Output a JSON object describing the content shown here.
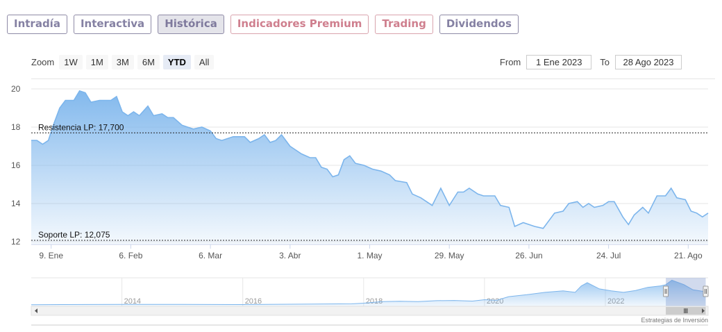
{
  "tabs": [
    {
      "label": "Intradía",
      "style": "normal"
    },
    {
      "label": "Interactiva",
      "style": "normal"
    },
    {
      "label": "Histórica",
      "style": "active"
    },
    {
      "label": "Indicadores Premium",
      "style": "pink"
    },
    {
      "label": "Trading",
      "style": "pink"
    },
    {
      "label": "Dividendos",
      "style": "normal"
    }
  ],
  "zoom": {
    "label": "Zoom",
    "buttons": [
      "1W",
      "1M",
      "3M",
      "6M",
      "YTD",
      "All"
    ],
    "selected": "YTD"
  },
  "range": {
    "from_label": "From",
    "from_value": "1 Ene 2023",
    "to_label": "To",
    "to_value": "28 Ago 2023"
  },
  "credit": "Estrategias de Inversión",
  "colors": {
    "line": "#7cb5ec",
    "area_top": "#7cb5ec",
    "tab_text": "#8581a3",
    "tab_pink": "#cf7f8e"
  },
  "chart_data": {
    "type": "area",
    "x_unit": "2023 dates",
    "x_range": [
      "2023-01-02",
      "2023-08-28"
    ],
    "ylim": [
      12,
      20
    ],
    "yticks": [
      12,
      14,
      16,
      18,
      20
    ],
    "grid": true,
    "xticks": [
      {
        "date": "2023-01-09",
        "label": "9. Ene"
      },
      {
        "date": "2023-02-06",
        "label": "6. Feb"
      },
      {
        "date": "2023-03-06",
        "label": "6. Mar"
      },
      {
        "date": "2023-04-03",
        "label": "3. Abr"
      },
      {
        "date": "2023-05-01",
        "label": "1. May"
      },
      {
        "date": "2023-05-29",
        "label": "29. May"
      },
      {
        "date": "2023-06-26",
        "label": "26. Jun"
      },
      {
        "date": "2023-07-24",
        "label": "24. Jul"
      },
      {
        "date": "2023-08-21",
        "label": "21. Ago"
      }
    ],
    "reference_lines": [
      {
        "label": "Resistencia LP: 17,700",
        "value": 17.7
      },
      {
        "label": "Soporte LP: 12,075",
        "value": 12.075
      }
    ],
    "points": [
      [
        "2023-01-02",
        17.3
      ],
      [
        "2023-01-04",
        17.3
      ],
      [
        "2023-01-06",
        17.1
      ],
      [
        "2023-01-08",
        17.3
      ],
      [
        "2023-01-10",
        18.2
      ],
      [
        "2023-01-12",
        19.0
      ],
      [
        "2023-01-14",
        19.4
      ],
      [
        "2023-01-17",
        19.4
      ],
      [
        "2023-01-19",
        19.9
      ],
      [
        "2023-01-21",
        19.8
      ],
      [
        "2023-01-23",
        19.3
      ],
      [
        "2023-01-26",
        19.4
      ],
      [
        "2023-01-30",
        19.4
      ],
      [
        "2023-02-01",
        19.6
      ],
      [
        "2023-02-03",
        18.8
      ],
      [
        "2023-02-05",
        18.6
      ],
      [
        "2023-02-07",
        18.8
      ],
      [
        "2023-02-09",
        18.6
      ],
      [
        "2023-02-12",
        19.1
      ],
      [
        "2023-02-14",
        18.6
      ],
      [
        "2023-02-17",
        18.7
      ],
      [
        "2023-02-19",
        18.5
      ],
      [
        "2023-02-21",
        18.5
      ],
      [
        "2023-02-24",
        18.1
      ],
      [
        "2023-02-28",
        17.9
      ],
      [
        "2023-03-03",
        18.0
      ],
      [
        "2023-03-06",
        17.8
      ],
      [
        "2023-03-08",
        17.4
      ],
      [
        "2023-03-10",
        17.3
      ],
      [
        "2023-03-14",
        17.5
      ],
      [
        "2023-03-18",
        17.5
      ],
      [
        "2023-03-20",
        17.2
      ],
      [
        "2023-03-23",
        17.4
      ],
      [
        "2023-03-25",
        17.6
      ],
      [
        "2023-03-27",
        17.2
      ],
      [
        "2023-03-29",
        17.3
      ],
      [
        "2023-03-31",
        17.6
      ],
      [
        "2023-04-03",
        17.0
      ],
      [
        "2023-04-05",
        16.8
      ],
      [
        "2023-04-07",
        16.6
      ],
      [
        "2023-04-10",
        16.4
      ],
      [
        "2023-04-12",
        16.4
      ],
      [
        "2023-04-14",
        15.9
      ],
      [
        "2023-04-16",
        15.8
      ],
      [
        "2023-04-18",
        15.4
      ],
      [
        "2023-04-20",
        15.5
      ],
      [
        "2023-04-22",
        16.3
      ],
      [
        "2023-04-24",
        16.5
      ],
      [
        "2023-04-26",
        16.1
      ],
      [
        "2023-04-29",
        16.0
      ],
      [
        "2023-05-02",
        15.8
      ],
      [
        "2023-05-05",
        15.7
      ],
      [
        "2023-05-08",
        15.5
      ],
      [
        "2023-05-10",
        15.2
      ],
      [
        "2023-05-14",
        15.1
      ],
      [
        "2023-05-16",
        14.5
      ],
      [
        "2023-05-19",
        14.3
      ],
      [
        "2023-05-23",
        13.9
      ],
      [
        "2023-05-26",
        14.8
      ],
      [
        "2023-05-29",
        13.9
      ],
      [
        "2023-06-01",
        14.6
      ],
      [
        "2023-06-03",
        14.6
      ],
      [
        "2023-06-05",
        14.8
      ],
      [
        "2023-06-08",
        14.5
      ],
      [
        "2023-06-10",
        14.4
      ],
      [
        "2023-06-14",
        14.4
      ],
      [
        "2023-06-16",
        13.9
      ],
      [
        "2023-06-19",
        13.8
      ],
      [
        "2023-06-21",
        12.8
      ],
      [
        "2023-06-24",
        13.0
      ],
      [
        "2023-06-26",
        12.9
      ],
      [
        "2023-06-28",
        12.8
      ],
      [
        "2023-07-01",
        12.7
      ],
      [
        "2023-07-05",
        13.5
      ],
      [
        "2023-07-08",
        13.6
      ],
      [
        "2023-07-10",
        14.0
      ],
      [
        "2023-07-13",
        14.1
      ],
      [
        "2023-07-15",
        13.8
      ],
      [
        "2023-07-17",
        14.0
      ],
      [
        "2023-07-19",
        13.8
      ],
      [
        "2023-07-22",
        13.9
      ],
      [
        "2023-07-24",
        14.1
      ],
      [
        "2023-07-26",
        14.1
      ],
      [
        "2023-07-29",
        13.3
      ],
      [
        "2023-07-31",
        12.9
      ],
      [
        "2023-08-02",
        13.4
      ],
      [
        "2023-08-05",
        13.8
      ],
      [
        "2023-08-07",
        13.5
      ],
      [
        "2023-08-10",
        14.4
      ],
      [
        "2023-08-13",
        14.4
      ],
      [
        "2023-08-15",
        14.8
      ],
      [
        "2023-08-17",
        14.3
      ],
      [
        "2023-08-20",
        14.2
      ],
      [
        "2023-08-22",
        13.6
      ],
      [
        "2023-08-24",
        13.5
      ],
      [
        "2023-08-26",
        13.3
      ],
      [
        "2023-08-28",
        13.5
      ]
    ]
  },
  "navigator": {
    "x_range": [
      2012.5,
      2023.7
    ],
    "year_labels": [
      "2014",
      "2016",
      "2018",
      "2020",
      "2022"
    ],
    "selected_range": [
      2023.0,
      2023.66
    ],
    "points": [
      [
        2012.5,
        6.8
      ],
      [
        2013.0,
        6.9
      ],
      [
        2014.0,
        7.0
      ],
      [
        2015.0,
        7.0
      ],
      [
        2016.0,
        6.9
      ],
      [
        2017.0,
        7.1
      ],
      [
        2017.8,
        7.3
      ],
      [
        2018.0,
        7.6
      ],
      [
        2018.3,
        8.4
      ],
      [
        2018.6,
        8.6
      ],
      [
        2018.9,
        8.4
      ],
      [
        2019.2,
        8.9
      ],
      [
        2019.5,
        9.0
      ],
      [
        2019.8,
        8.7
      ],
      [
        2020.0,
        9.4
      ],
      [
        2020.2,
        9.1
      ],
      [
        2020.4,
        11.0
      ],
      [
        2020.7,
        12.0
      ],
      [
        2021.0,
        13.2
      ],
      [
        2021.3,
        14.0
      ],
      [
        2021.5,
        13.2
      ],
      [
        2021.6,
        16.5
      ],
      [
        2021.7,
        18.2
      ],
      [
        2021.9,
        15.0
      ],
      [
        2022.1,
        14.0
      ],
      [
        2022.3,
        13.2
      ],
      [
        2022.5,
        14.2
      ],
      [
        2022.7,
        15.8
      ],
      [
        2022.9,
        16.5
      ],
      [
        2023.0,
        17.2
      ],
      [
        2023.1,
        19.5
      ],
      [
        2023.3,
        17.2
      ],
      [
        2023.45,
        14.5
      ],
      [
        2023.6,
        13.8
      ],
      [
        2023.66,
        13.5
      ]
    ]
  }
}
